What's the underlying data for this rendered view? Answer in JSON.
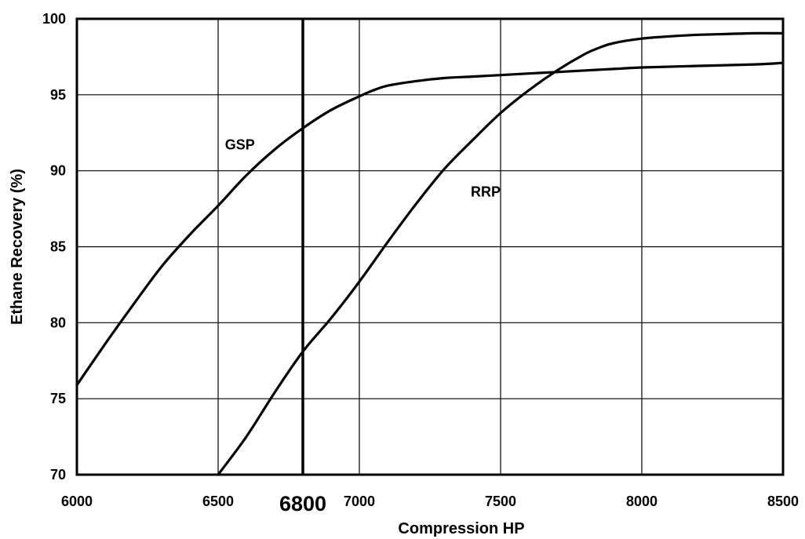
{
  "chart_data": {
    "type": "line",
    "xlabel": "Compression HP",
    "ylabel": "Ethane Recovery (%)",
    "xlim": [
      6000,
      8500
    ],
    "ylim": [
      70,
      100
    ],
    "xticks": [
      6000,
      6500,
      7000,
      7500,
      8000,
      8500
    ],
    "yticks": [
      70,
      75,
      80,
      85,
      90,
      95,
      100
    ],
    "grid": true,
    "legend": "none",
    "reference_line": {
      "x": 6800,
      "label": "6800"
    },
    "series": [
      {
        "name": "GSP",
        "x": [
          6000,
          6100,
          6200,
          6300,
          6400,
          6500,
          6600,
          6700,
          6800,
          6900,
          7000,
          7050,
          7100,
          7200,
          7300,
          7400,
          7500,
          7600,
          7700,
          7800,
          7900,
          8000,
          8200,
          8400,
          8500
        ],
        "y": [
          75.9,
          78.6,
          81.2,
          83.7,
          85.8,
          87.7,
          89.7,
          91.4,
          92.8,
          94.0,
          94.9,
          95.3,
          95.6,
          95.9,
          96.1,
          96.2,
          96.3,
          96.4,
          96.5,
          96.6,
          96.7,
          96.8,
          96.9,
          97.0,
          97.1
        ]
      },
      {
        "name": "RRP",
        "x": [
          6500,
          6600,
          6700,
          6800,
          6900,
          7000,
          7100,
          7200,
          7300,
          7400,
          7500,
          7600,
          7700,
          7800,
          7850,
          7900,
          8000,
          8100,
          8200,
          8300,
          8400,
          8500
        ],
        "y": [
          70.0,
          72.5,
          75.4,
          78.1,
          80.3,
          82.7,
          85.3,
          87.8,
          90.1,
          92.0,
          93.8,
          95.3,
          96.6,
          97.7,
          98.1,
          98.4,
          98.7,
          98.85,
          98.95,
          99.0,
          99.05,
          99.05
        ]
      }
    ]
  }
}
